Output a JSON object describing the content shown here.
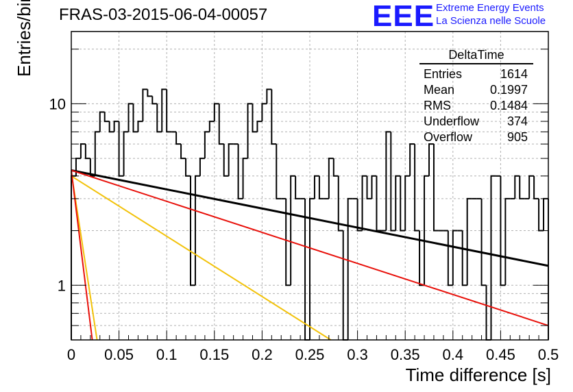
{
  "header": {
    "title": "FRAS-03-2015-06-04-00057",
    "logo": "EEE",
    "subtitle1": "Extreme Energy Events",
    "subtitle2": "La Scienza nelle Scuole"
  },
  "stats_box": {
    "name": "DeltaTime",
    "rows": [
      {
        "label": "Entries",
        "value": "1614"
      },
      {
        "label": "Mean",
        "value": "0.1997"
      },
      {
        "label": "RMS",
        "value": "0.1484"
      },
      {
        "label": "Underflow",
        "value": "374"
      },
      {
        "label": "Overflow",
        "value": "905"
      }
    ]
  },
  "chart_data": {
    "type": "histogram",
    "title": "FRAS-03-2015-06-04-00057",
    "xlabel": "Time difference [s]",
    "ylabel": "Entries/bin",
    "xlim": [
      0,
      0.5
    ],
    "ylim": [
      0.5,
      25
    ],
    "log_y": true,
    "grid": true,
    "x_ticks": [
      "0",
      "0.05",
      "0.1",
      "0.15",
      "0.2",
      "0.25",
      "0.3",
      "0.35",
      "0.4",
      "0.45",
      "0.5"
    ],
    "y_ticks": [
      "1",
      "10"
    ],
    "bin_width": 0.005,
    "bin_values": [
      4,
      5,
      6,
      5,
      4,
      7,
      9,
      8,
      7,
      8,
      4,
      7,
      10,
      7,
      8,
      12,
      11,
      10,
      7,
      12,
      7,
      7,
      6,
      5,
      4,
      1,
      4,
      5,
      7,
      8,
      10,
      6,
      4,
      6,
      6,
      3,
      5,
      10,
      7,
      8,
      10,
      12,
      6,
      3,
      3,
      1,
      4,
      3,
      3,
      0,
      3,
      4,
      3,
      3,
      5,
      4,
      2,
      0,
      3,
      3,
      2,
      4,
      3,
      4,
      2,
      2,
      7,
      2,
      4,
      2,
      4,
      6,
      2,
      1,
      4,
      6,
      2,
      2,
      2,
      1,
      2,
      2,
      1,
      3,
      3,
      3,
      1,
      0,
      4,
      4,
      1,
      3,
      3,
      4,
      3,
      3,
      4,
      3,
      2,
      3
    ],
    "fits": [
      {
        "color": "#000000",
        "points": [
          [
            0.0,
            4.3
          ],
          [
            0.5,
            1.28
          ]
        ]
      },
      {
        "color": "#e8100a",
        "points": [
          [
            0.0,
            4.3
          ],
          [
            0.5,
            0.6
          ]
        ]
      },
      {
        "color": "#f2c20a",
        "points": [
          [
            0.0,
            4.0
          ],
          [
            0.272,
            0.5
          ]
        ]
      },
      {
        "color": "#f2c20a",
        "points": [
          [
            0.0,
            4.2
          ],
          [
            0.027,
            0.5
          ]
        ]
      },
      {
        "color": "#e8100a",
        "points": [
          [
            0.0,
            4.3
          ],
          [
            0.022,
            0.5
          ]
        ]
      }
    ]
  },
  "colors": {
    "logo": "#1a1aff",
    "grid": "#b0b0b0"
  }
}
